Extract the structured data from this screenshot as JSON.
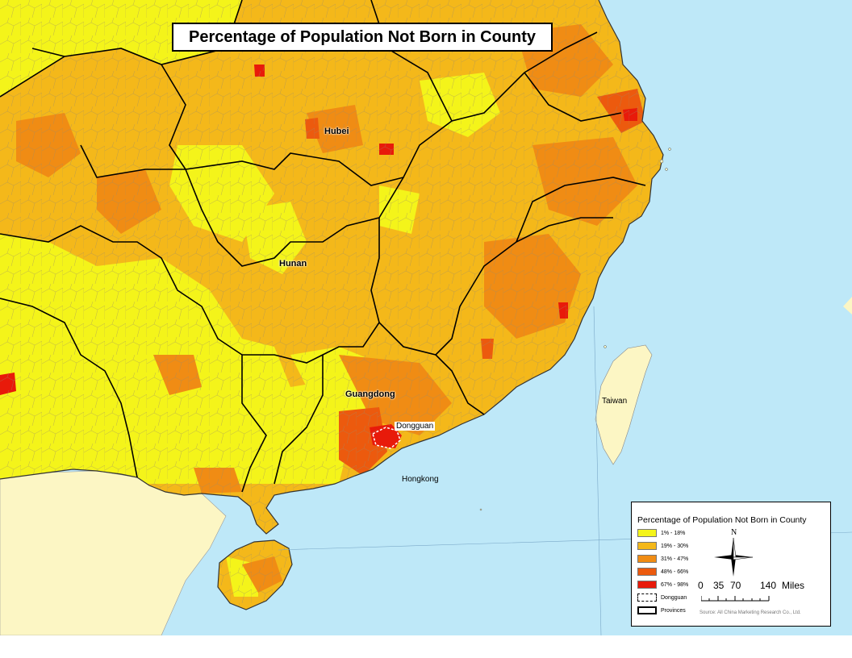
{
  "title": "Percentage of Population Not Born in County",
  "labels": {
    "hubei": "Hubei",
    "hunan": "Hunan",
    "guangdong": "Guangdong",
    "dongguan": "Dongguan",
    "hongkong": "Hongkong",
    "taiwan": "Taiwan"
  },
  "legend": {
    "title": "Percentage of Population Not Born in County",
    "classes": [
      {
        "label": "1% - 18%",
        "color": "#f4f41a"
      },
      {
        "label": "19% - 30%",
        "color": "#f4b81a"
      },
      {
        "label": "31% - 47%",
        "color": "#f08c14"
      },
      {
        "label": "48% - 66%",
        "color": "#ec5a0e"
      },
      {
        "label": "67% - 98%",
        "color": "#e81a0a"
      }
    ],
    "dongguan_label": "Dongguan",
    "provinces_label": "Provinces",
    "north_label": "N",
    "scale": {
      "t0": "0",
      "t1": "35",
      "t2": "70",
      "t3": "140",
      "unit": "Miles"
    },
    "source": "Source: All China Marketing Research Co., Ltd."
  },
  "colors": {
    "sea": "#bee8f8",
    "land_outside": "#fcf6c4",
    "class1": "#f4f41a",
    "class2": "#f4b81a",
    "class3": "#f08c14",
    "class4": "#ec5a0e",
    "class5": "#e81a0a"
  }
}
